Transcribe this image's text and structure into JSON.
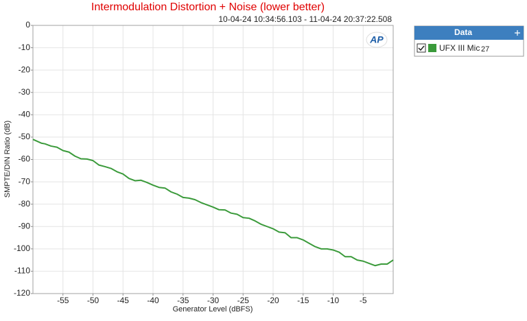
{
  "chart_data": {
    "type": "line",
    "title": "Intermodulation Distortion + Noise (lower better)",
    "subtitle": "10-04-24 10:34:56.103 - 11-04-24 20:37:22.508",
    "x_label": "Generator Level (dBFS)",
    "y_label": "SMPTE/DIN Ratio (dB)",
    "logo": "AP",
    "legend_title": "Data",
    "grid": true,
    "xlim": [
      -60,
      0
    ],
    "xticks": [
      -55,
      -50,
      -45,
      -40,
      -35,
      -30,
      -25,
      -20,
      -15,
      -10,
      -5
    ],
    "ylim": [
      -120,
      0
    ],
    "yticks": [
      0,
      -10,
      -20,
      -30,
      -40,
      -50,
      -60,
      -70,
      -80,
      -90,
      -100,
      -110,
      -120
    ],
    "x": [
      -60,
      -58.6,
      -58,
      -57,
      -56,
      -55,
      -54,
      -53,
      -52,
      -51,
      -50,
      -49,
      -48,
      -47,
      -46,
      -45,
      -44,
      -43,
      -42,
      -41,
      -40,
      -39,
      -38,
      -37,
      -36,
      -35,
      -34,
      -33,
      -32,
      -31,
      -30,
      -29,
      -28,
      -27,
      -26,
      -25,
      -24,
      -23,
      -22,
      -21,
      -20,
      -19,
      -18,
      -17,
      -16,
      -15,
      -14,
      -13,
      -12,
      -11,
      -10,
      -9,
      -8,
      -7,
      -6,
      -5,
      -4,
      -3,
      -2,
      -1,
      0
    ],
    "series": [
      {
        "name": "UFX III Mic",
        "channel": "27",
        "color": "#3a9a3a",
        "values": [
          -51,
          -52.7,
          -53,
          -54,
          -54.5,
          -56,
          -56.7,
          -58.5,
          -59.7,
          -59.8,
          -60.5,
          -62.5,
          -63.2,
          -64,
          -65.5,
          -66.5,
          -68.5,
          -69.5,
          -69.3,
          -70.3,
          -71.5,
          -72.5,
          -72.8,
          -74.5,
          -75.5,
          -77,
          -77.3,
          -78,
          -79.3,
          -80.3,
          -81.3,
          -82.5,
          -82.6,
          -84,
          -84.5,
          -86,
          -86.3,
          -87.5,
          -89,
          -90,
          -91,
          -92.5,
          -92.8,
          -95,
          -95,
          -96,
          -97.5,
          -99,
          -100,
          -100,
          -100.5,
          -101.5,
          -103.5,
          -103.5,
          -105,
          -105.5,
          -106.5,
          -107.5,
          -106.8,
          -106.8,
          -105
        ]
      }
    ]
  }
}
